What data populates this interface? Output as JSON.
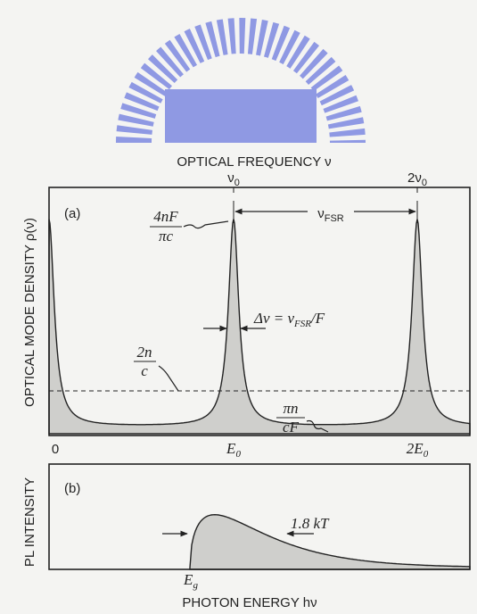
{
  "top_axis": {
    "title": "OPTICAL FREQUENCY ν",
    "ticks": [
      {
        "symbol": "ν",
        "sub": "0"
      },
      {
        "symbol": "2ν",
        "sub": "0"
      }
    ]
  },
  "panel_a": {
    "label": "(a)",
    "y_label": "OPTICAL MODE DENSITY ρ(ν)",
    "peak_label": {
      "numerator": "4nF",
      "denominator": "πc"
    },
    "fsr_label": {
      "symbol": "ν",
      "sub": "FSR"
    },
    "width_label": {
      "lead": "Δν = ν",
      "sub": "FSR",
      "tail": "/F"
    },
    "mean_label": {
      "numerator": "2n",
      "denominator": "c"
    },
    "min_label": {
      "numerator": "πn",
      "denominator": "cF"
    },
    "x_ticks": [
      {
        "symbol": "0",
        "sub": ""
      },
      {
        "symbol": "E",
        "sub": "0"
      },
      {
        "symbol": "2E",
        "sub": "0"
      }
    ]
  },
  "panel_b": {
    "label": "(b)",
    "y_label": "PL INTENSITY",
    "width_label": "1.8 kT",
    "edge_label": {
      "symbol": "E",
      "sub": "g"
    },
    "x_title": "PHOTON ENERGY hν"
  }
}
